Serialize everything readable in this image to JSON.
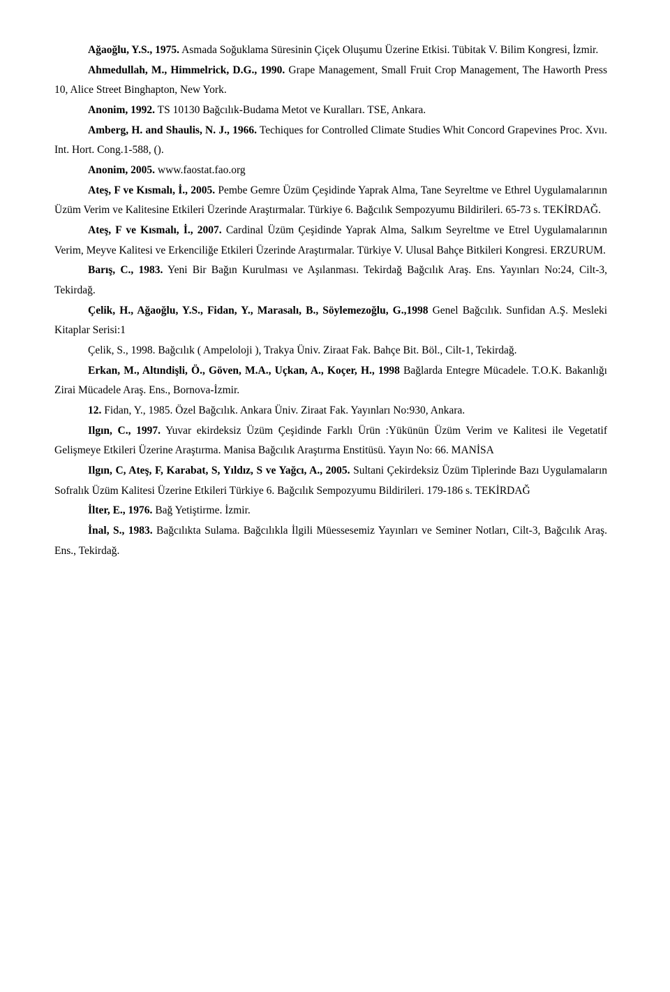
{
  "refs": [
    {
      "b": "Ağaoğlu, Y.S., 1975.",
      "t": " Asmada Soğuklama Süresinin Çiçek Oluşumu Üzerine Etkisi. Tübitak V. Bilim Kongresi, İzmir."
    },
    {
      "b": "Ahmedullah, M., Himmelrick, D.G., 1990.",
      "t": " Grape Management, Small Fruit Crop Management, The Haworth Press 10, Alice Street Binghapton, New York."
    },
    {
      "b": "Anonim, 1992.",
      "t": " TS 10130  Bağcılık-Budama Metot ve Kuralları. TSE, Ankara."
    },
    {
      "b": "Amberg, H. and Shaulis, N. J., 1966.",
      "t": " Techiques for Controlled Climate Studies Whit Concord Grapevines  Proc. Xvıı. Int. Hort. Cong.1-588, ()."
    },
    {
      "b": "Anonim, 2005.",
      "t": " www.faostat.fao.org"
    },
    {
      "b": "Ateş, F ve Kısmalı, İ., 2005.",
      "t": " Pembe Gemre Üzüm Çeşidinde Yaprak Alma, Tane Seyreltme ve Ethrel Uygulamalarının Üzüm Verim ve Kalitesine Etkileri Üzerinde Araştırmalar. Türkiye 6. Bağcılık Sempozyumu Bildirileri. 65-73 s. TEKİRDAĞ."
    },
    {
      "b": "Ateş, F ve Kısmalı, İ., 2007.",
      "t": " Cardinal Üzüm Çeşidinde Yaprak Alma, Salkım Seyreltme ve Etrel Uygulamalarının Verim, Meyve Kalitesi ve Erkenciliğe Etkileri Üzerinde Araştırmalar. Türkiye V. Ulusal Bahçe Bitkileri Kongresi. ERZURUM."
    },
    {
      "b": "Barış, C., 1983.",
      "t": " Yeni Bir Bağın Kurulması ve Aşılanması. Tekirdağ Bağcılık Araş. Ens. Yayınları No:24, Cilt-3, Tekirdağ."
    },
    {
      "b": "Çelik, H., Ağaoğlu, Y.S., Fidan, Y., Marasalı, B., Söylemezoğlu, G.,1998",
      "t": " Genel Bağcılık. Sunfidan A.Ş. Mesleki Kitaplar Serisi:1"
    },
    {
      "b": "",
      "t": "Çelik, S., 1998. Bağcılık ( Ampeloloji ), Trakya Üniv. Ziraat Fak. Bahçe Bit. Böl., Cilt-1, Tekirdağ."
    },
    {
      "b": "Erkan, M., Altındişli, Ö., Göven, M.A., Uçkan, A., Koçer, H., 1998",
      "t": " Bağlarda Entegre Mücadele. T.O.K. Bakanlığı Zirai Mücadele Araş. Ens., Bornova-İzmir."
    },
    {
      "b": "12.",
      "t": " Fidan, Y., 1985. Özel Bağcılık. Ankara Üniv. Ziraat Fak. Yayınları No:930, Ankara."
    },
    {
      "b": "Ilgın, C., 1997.",
      "t": " Yuvar ekirdeksiz Üzüm Çeşidinde Farklı Ürün :Yükünün Üzüm Verim ve Kalitesi ile Vegetatif Gelişmeye Etkileri Üzerine Araştırma. Manisa Bağcılık Araştırma Enstitüsü. Yayın No: 66. MANİSA"
    },
    {
      "b": "Ilgın, C, Ateş, F, Karabat, S, Yıldız, S ve Yağcı, A., 2005.",
      "t": " Sultani Çekirdeksiz Üzüm Tiplerinde Bazı Uygulamaların Sofralık Üzüm   Kalitesi Üzerine Etkileri Türkiye 6. Bağcılık Sempozyumu Bildirileri. 179-186 s. TEKİRDAĞ"
    },
    {
      "b": "İlter, E., 1976.",
      "t": " Bağ Yetiştirme. İzmir."
    },
    {
      "b": "İnal, S., 1983.",
      "t": " Bağcılıkta Sulama. Bağcılıkla İlgili Müessesemiz Yayınları ve Seminer Notları, Cilt-3, Bağcılık Araş. Ens., Tekirdağ."
    }
  ]
}
